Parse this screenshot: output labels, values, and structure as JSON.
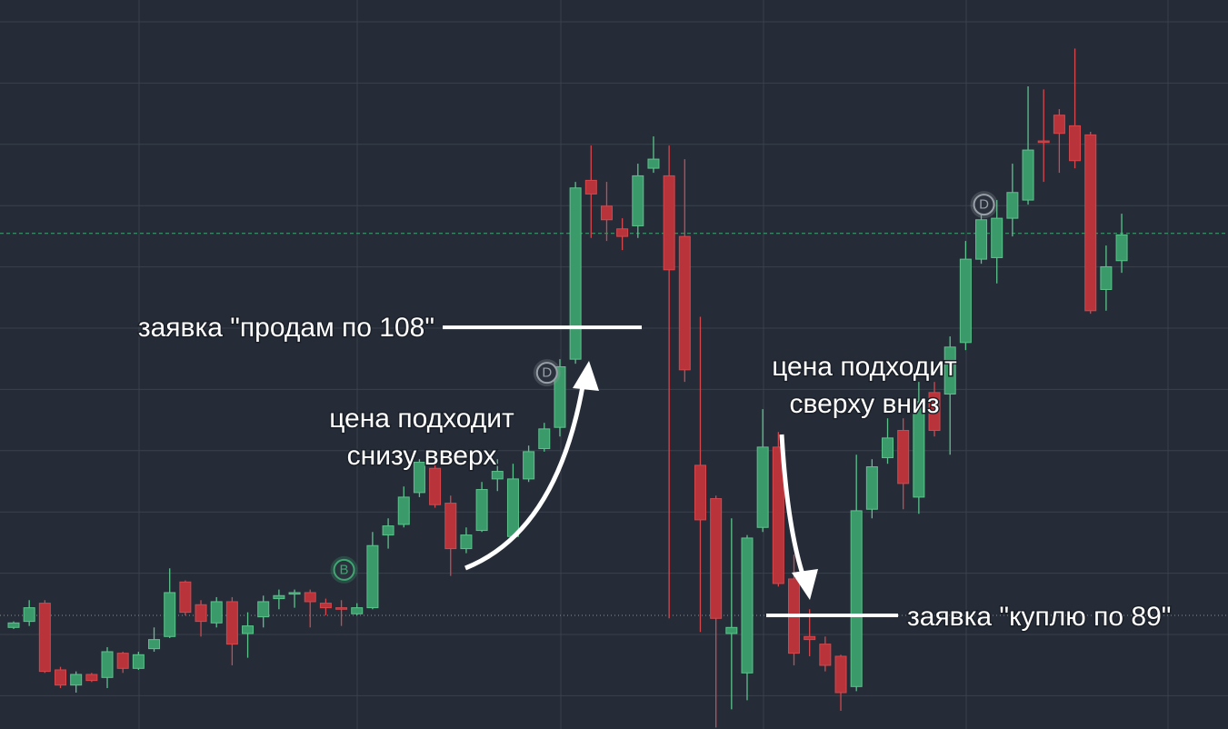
{
  "chart_data": {
    "type": "candlestick",
    "ylim": [
      81.5,
      129.6
    ],
    "up_color": "#3b9a6a",
    "down_color": "#b8343a",
    "open": [
      88.2,
      88.6,
      89.8,
      85.4,
      84.4,
      85.1,
      84.9,
      86.5,
      85.5,
      86.8,
      87.6,
      91.2,
      89.7,
      88.5,
      89.9,
      87.8,
      88.9,
      90.1,
      90.4,
      90.5,
      89.8,
      89.5,
      89.1,
      89.5,
      94.3,
      95.0,
      97.1,
      98.7,
      96.4,
      93.4,
      94.6,
      98.0,
      94.2,
      98.0,
      100.0,
      101.4,
      105.9,
      117.7,
      116.0,
      114.5,
      114.7,
      118.5,
      118.0,
      114.0,
      98.9,
      96.7,
      87.8,
      85.2,
      94.8,
      100.1,
      91.4,
      87.6,
      87.1,
      86.3,
      84.3,
      96.0,
      99.4,
      101.2,
      96.8,
      103.7,
      103.6,
      107.0,
      112.5,
      112.6,
      115.2,
      116.4,
      120.3,
      122.0,
      121.3,
      120.7,
      110.5,
      112.4
    ],
    "high": [
      88.6,
      90.0,
      90.0,
      85.6,
      85.3,
      85.2,
      86.9,
      86.6,
      86.6,
      88.2,
      92.1,
      91.3,
      90.0,
      90.2,
      90.2,
      89.2,
      90.3,
      90.7,
      90.7,
      90.7,
      90.1,
      90.0,
      89.8,
      94.5,
      95.4,
      97.5,
      99.3,
      99.3,
      96.9,
      94.8,
      97.8,
      99.3,
      99.0,
      100.2,
      101.7,
      105.9,
      117.6,
      120.0,
      117.6,
      115.2,
      118.8,
      120.6,
      120.0,
      119.1,
      108.7,
      96.9,
      95.4,
      94.3,
      102.6,
      101.1,
      93.0,
      89.4,
      87.6,
      86.4,
      99.6,
      99.3,
      102.0,
      102.0,
      104.4,
      104.4,
      107.4,
      113.7,
      116.1,
      116.4,
      118.8,
      123.9,
      123.7,
      122.4,
      126.4,
      120.9,
      113.4,
      115.5
    ],
    "low": [
      88.1,
      88.3,
      85.2,
      84.2,
      83.9,
      84.6,
      84.2,
      85.2,
      85.4,
      86.6,
      87.5,
      89.0,
      87.6,
      88.2,
      85.7,
      86.2,
      88.2,
      89.4,
      89.5,
      88.2,
      89.0,
      88.3,
      89.0,
      89.4,
      93.4,
      94.8,
      96.8,
      96.1,
      91.6,
      93.1,
      94.5,
      97.2,
      94.1,
      97.8,
      99.8,
      100.8,
      105.6,
      113.9,
      113.7,
      113.1,
      113.9,
      118.2,
      88.8,
      104.4,
      87.9,
      81.6,
      82.8,
      83.4,
      94.5,
      90.9,
      85.7,
      86.3,
      85.3,
      82.7,
      84.0,
      95.4,
      99.0,
      96.0,
      95.7,
      100.8,
      99.6,
      106.5,
      112.2,
      110.9,
      114.0,
      116.1,
      117.6,
      118.2,
      118.5,
      108.9,
      109.1,
      111.6
    ],
    "close": [
      88.5,
      89.5,
      85.3,
      84.4,
      85.1,
      84.7,
      86.6,
      85.5,
      86.4,
      87.4,
      90.5,
      89.2,
      88.6,
      89.9,
      87.1,
      88.3,
      89.9,
      90.3,
      90.5,
      89.9,
      89.5,
      89.4,
      89.5,
      93.6,
      94.9,
      96.8,
      99.1,
      96.3,
      93.4,
      94.3,
      97.3,
      98.5,
      98.0,
      99.8,
      101.3,
      105.4,
      117.2,
      116.8,
      115.1,
      114.0,
      118.0,
      119.1,
      111.8,
      105.2,
      95.3,
      88.8,
      88.2,
      94.1,
      100.1,
      91.1,
      86.5,
      87.4,
      85.7,
      83.9,
      95.9,
      98.8,
      100.7,
      97.7,
      103.1,
      101.2,
      106.7,
      112.5,
      115.1,
      115.2,
      116.9,
      119.7,
      120.2,
      120.8,
      119.0,
      109.1,
      112.0,
      114.1
    ],
    "price_lines": [
      {
        "value": 114.2,
        "color": "#3fa672",
        "style": "dashed"
      },
      {
        "value": 89,
        "color": "#8a8f98",
        "style": "dotted"
      }
    ],
    "markers": [
      {
        "label": "B",
        "index": 21,
        "price": 92.0,
        "color": "#3fa672"
      },
      {
        "label": "D",
        "index": 34,
        "price": 105.0,
        "color": "#9aa0a8"
      },
      {
        "label": "D",
        "index": 62,
        "price": 116.1,
        "color": "#9aa0a8"
      }
    ],
    "orders": [
      {
        "text": "заявка \"продам по 108\"",
        "price": 108
      },
      {
        "text": "заявка \"куплю по 89\"",
        "price": 89
      }
    ],
    "notes": [
      [
        "цена подходит",
        "снизу вверх"
      ],
      [
        "цена подходит",
        "сверху вниз"
      ]
    ]
  }
}
